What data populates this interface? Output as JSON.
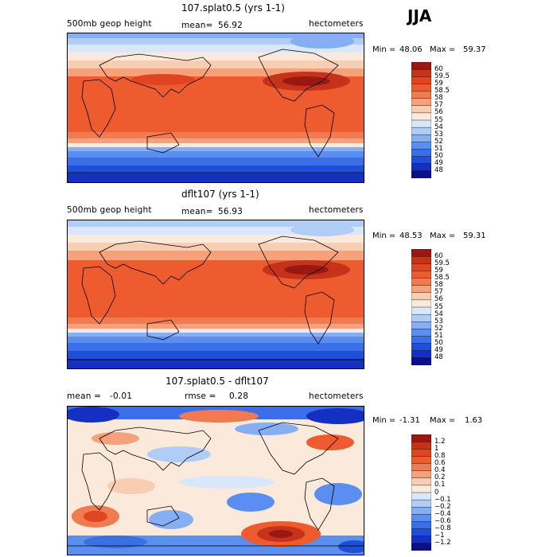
{
  "season": "JJA",
  "colors": {
    "abs_scale": [
      "#0b0f8a",
      "#1530c0",
      "#1f4fd8",
      "#3a6fe8",
      "#5a8ef0",
      "#86aef2",
      "#b0cdf6",
      "#d8e8fa",
      "#fbe9dc",
      "#f8cdb2",
      "#f5a27c",
      "#f27a50",
      "#ee5b2f",
      "#e04420",
      "#c7321a",
      "#9a1812"
    ],
    "diff_scale": [
      "#0b0f8a",
      "#1530c0",
      "#1f4fd8",
      "#3a6fe8",
      "#5a8ef0",
      "#86aef2",
      "#b0cdf6",
      "#d8e8fa",
      "#fbe9dc",
      "#f8cdb2",
      "#f5a27c",
      "#f27a50",
      "#ee5b2f",
      "#e04420",
      "#c7321a",
      "#9a1812"
    ]
  },
  "chart_data": [
    {
      "type": "heatmap",
      "title": "107.splat0.5 (yrs 1-1)",
      "variable": "500mb geop height",
      "stat_label": "mean=",
      "stat_value": "56.92",
      "units": "hectometers",
      "min_label": "Min =",
      "min_value": "48.06",
      "max_label": "Max =",
      "max_value": "59.37",
      "levels": [
        "60",
        "59.5",
        "59",
        "58.5",
        "58",
        "57",
        "56",
        "55",
        "54",
        "53",
        "52",
        "51",
        "50",
        "49",
        "48"
      ]
    },
    {
      "type": "heatmap",
      "title": "dflt107 (yrs 1-1)",
      "variable": "500mb geop height",
      "stat_label": "mean=",
      "stat_value": "56.93",
      "units": "hectometers",
      "min_label": "Min =",
      "min_value": "48.53",
      "max_label": "Max =",
      "max_value": "59.31",
      "levels": [
        "60",
        "59.5",
        "59",
        "58.5",
        "58",
        "57",
        "56",
        "55",
        "54",
        "53",
        "52",
        "51",
        "50",
        "49",
        "48"
      ]
    },
    {
      "type": "heatmap",
      "title": "107.splat0.5 - dflt107",
      "mean_label": "mean =",
      "mean_value": "-0.01",
      "rmse_label": "rmse =",
      "rmse_value": "0.28",
      "units": "hectometers",
      "min_label": "Min =",
      "min_value": "-1.31",
      "max_label": "Max =",
      "max_value": "1.63",
      "levels": [
        "1.2",
        "1",
        "0.8",
        "0.6",
        "0.4",
        "0.2",
        "0.1",
        "0",
        "-0.1",
        "-0.2",
        "-0.4",
        "-0.6",
        "-0.8",
        "-1",
        "-1.2"
      ]
    }
  ]
}
